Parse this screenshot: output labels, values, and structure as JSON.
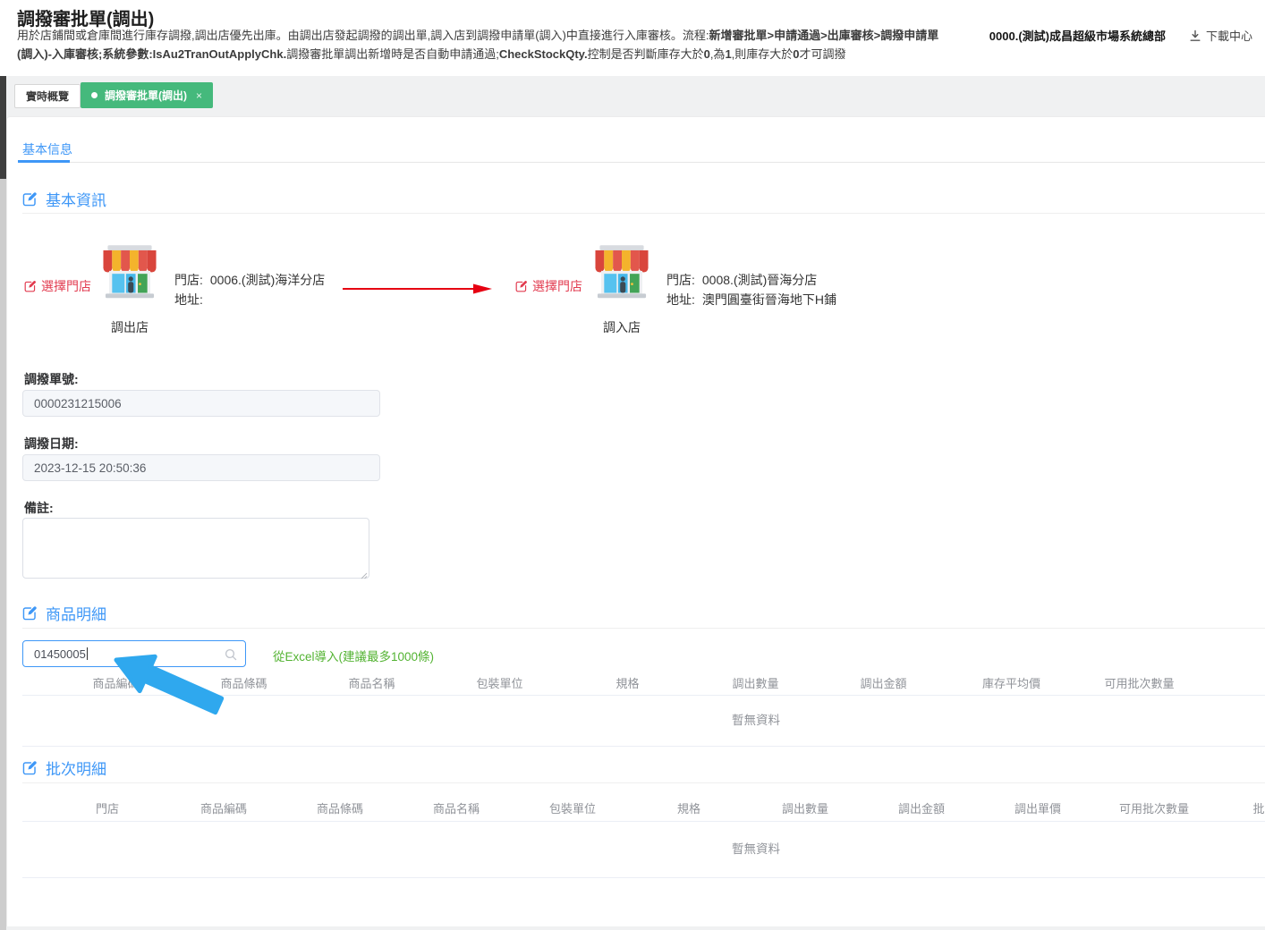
{
  "colors": {
    "accent_blue": "#3e97f7",
    "tab_green": "#45b97c",
    "link_red": "#e23c50",
    "excel_green": "#53b332",
    "arrow_red": "#e60012",
    "annotation_blue": "#2fa8ee"
  },
  "icons": {
    "download": "tray-arrow-down",
    "edit": "pen-square",
    "search": "magnifier",
    "close": "x",
    "active_dot": "dot",
    "store": "storefront",
    "transfer_arrow": "red-right-arrow",
    "annotation": "blue-pointer-arrow"
  },
  "header": {
    "title": "調撥審批單(調出)",
    "description_segments": [
      {
        "text": "用於店鋪間或倉庫間進行庫存調撥,調出店優先出庫。由調出店發起調撥的調出單,調入店到調撥申請單(調入)中直接進行入庫審核。流程:",
        "bold": false
      },
      {
        "text": "新增審批單>申請通過>出庫審核>調撥申請單(調入)-入庫審核;系統參數:",
        "bold": true
      },
      {
        "text": "IsAu2TranOutApplyChk.",
        "bold": true
      },
      {
        "text": "調撥審批單調出新增時是否自動申請通過;",
        "bold": false
      },
      {
        "text": "CheckStockQty.",
        "bold": true
      },
      {
        "text": "控制是否判斷庫存大於",
        "bold": false
      },
      {
        "text": "0",
        "bold": true
      },
      {
        "text": ",為",
        "bold": false
      },
      {
        "text": "1",
        "bold": true
      },
      {
        "text": ",則庫存大於",
        "bold": false
      },
      {
        "text": "0",
        "bold": true
      },
      {
        "text": "才可調撥",
        "bold": false
      }
    ],
    "company": "0000.(測試)成昌超級市場系統總部",
    "download_label": "下載中心"
  },
  "tabs": {
    "overview": "實時概覽",
    "active": "調撥審批單(調出)"
  },
  "subtab": "基本信息",
  "sections": {
    "basic": "基本資訊",
    "products": "商品明細",
    "batches": "批次明細"
  },
  "stores": {
    "out": {
      "select_label": "選擇門店",
      "role": "調出店",
      "store_label": "門店:",
      "store_value": "0006.(測試)海洋分店",
      "address_label": "地址:",
      "address_value": ""
    },
    "in": {
      "select_label": "選擇門店",
      "role": "調入店",
      "store_label": "門店:",
      "store_value": "0008.(測試)晉海分店",
      "address_label": "地址:",
      "address_value": "澳門圓臺街晉海地下H鋪"
    }
  },
  "form": {
    "order_no_label": "調撥單號:",
    "order_no_value": "0000231215006",
    "date_label": "調撥日期:",
    "date_value": "2023-12-15 20:50:36",
    "remark_label": "備註:",
    "remark_value": ""
  },
  "products_table": {
    "search_value": "01450005",
    "excel_import_label": "從Excel導入(建議最多1000條)",
    "columns": [
      "商品編碼",
      "商品條碼",
      "商品名稱",
      "包裝單位",
      "規格",
      "調出數量",
      "調出金額",
      "庫存平均價",
      "可用批次數量"
    ],
    "empty_text": "暫無資料"
  },
  "batches_table": {
    "columns": [
      "門店",
      "商品編碼",
      "商品條碼",
      "商品名稱",
      "包裝單位",
      "規格",
      "調出數量",
      "調出金額",
      "調出單價",
      "可用批次數量",
      "批次號"
    ],
    "empty_text": "暫無資料"
  }
}
